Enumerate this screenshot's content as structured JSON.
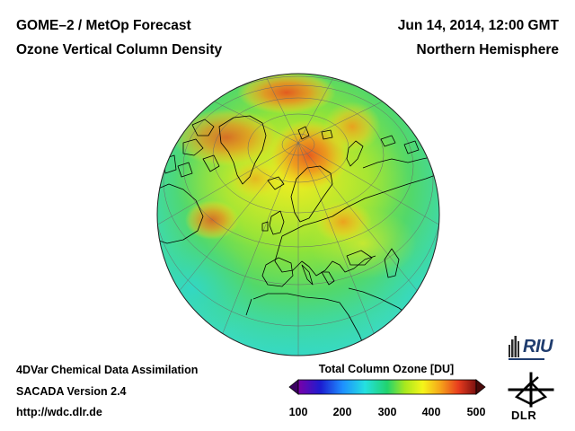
{
  "header": {
    "title": "GOME–2 / MetOp Forecast",
    "subtitle": "Ozone Vertical Column Density",
    "date": "Jun 14, 2014, 12:00 GMT",
    "region": "Northern Hemisphere"
  },
  "footer": {
    "system": "4DVar Chemical Data Assimilation",
    "version": "SACADA Version 2.4",
    "url": "http://wdc.dlr.de"
  },
  "colorbar": {
    "title": "Total Column Ozone [DU]",
    "min": 100,
    "max": 500,
    "ticks": [
      "100",
      "200",
      "300",
      "400",
      "500"
    ],
    "stops": [
      {
        "value": 100,
        "color": "#7a00a8"
      },
      {
        "value": 150,
        "color": "#1c1cd0"
      },
      {
        "value": 200,
        "color": "#1e90ff"
      },
      {
        "value": 250,
        "color": "#24e0e0"
      },
      {
        "value": 300,
        "color": "#21d36e"
      },
      {
        "value": 340,
        "color": "#a8e81e"
      },
      {
        "value": 380,
        "color": "#f5f51a"
      },
      {
        "value": 420,
        "color": "#f5a31a"
      },
      {
        "value": 460,
        "color": "#e83c1e"
      },
      {
        "value": 500,
        "color": "#7a1010"
      }
    ]
  },
  "map": {
    "projection": "orthographic",
    "hemisphere": "Northern Hemisphere",
    "quantity": "Total Column Ozone",
    "unit": "DU"
  },
  "logos": {
    "riu": "RIU",
    "dlr": "DLR"
  },
  "colors": {
    "riu_blue": "#1f3c6e",
    "coast": "#000000",
    "grid": "#666666"
  }
}
